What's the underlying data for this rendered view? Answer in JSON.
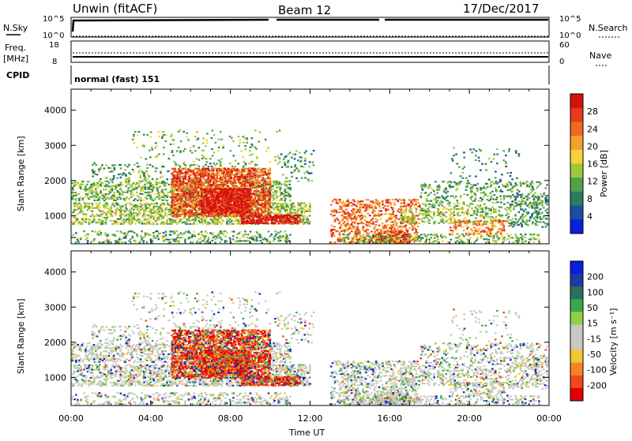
{
  "header": {
    "station": "Unwin (fitACF)",
    "beam": "Beam 12",
    "date": "17/Dec/2017"
  },
  "panels": {
    "nsky": {
      "left_label": "N.Sky",
      "left_ticks": [
        "10^5",
        "10^0"
      ],
      "right_ticks": [
        "10^5",
        "10^0"
      ],
      "right_label": "N.Search"
    },
    "freq": {
      "left_label": "Freq.",
      "left_unit": "[MHz]",
      "left_ticks": [
        "18",
        "8"
      ],
      "right_ticks": [
        "60",
        "0"
      ],
      "right_label": "Nave"
    },
    "cpid": {
      "label": "CPID",
      "value": "normal (fast) 151"
    }
  },
  "colors": {
    "power": [
      "#0a1fd8",
      "#1a4f9e",
      "#2b7d5b",
      "#4fa24a",
      "#9bc93c",
      "#f2d33a",
      "#f2a12b",
      "#ef6a20",
      "#e53a1b",
      "#d60f0f"
    ],
    "velocity": [
      "#e00000",
      "#f0481a",
      "#f5861f",
      "#f2c72f",
      "#c8c8c4",
      "#c8c8c4",
      "#8fd04a",
      "#3aa84a",
      "#2d6f5a",
      "#1f3a9e",
      "#0a1fd8"
    ]
  },
  "chart_data": [
    {
      "type": "heatmap",
      "name": "power",
      "ylabel": "Slant Range [km]",
      "ylim": [
        200,
        4600
      ],
      "yticks": [
        "4000",
        "3000",
        "2000",
        "1000"
      ],
      "xlim": [
        0,
        24
      ],
      "colorbar_label": "Power [dB]",
      "colorbar_ticks": [
        "28",
        "24",
        "20",
        "16",
        "12",
        "8",
        "4"
      ],
      "colorbar_range": [
        0,
        32
      ]
    },
    {
      "type": "heatmap",
      "name": "velocity",
      "ylabel": "Slant Range [km]",
      "ylim": [
        200,
        4600
      ],
      "yticks": [
        "4000",
        "3000",
        "2000",
        "1000"
      ],
      "xlim": [
        0,
        24
      ],
      "xlabel": "Time UT",
      "xticks": [
        "00:00",
        "04:00",
        "08:00",
        "12:00",
        "16:00",
        "20:00",
        "00:00"
      ],
      "colorbar_label": "Velocity [m s⁻¹]",
      "colorbar_ticks": [
        "200",
        "100",
        "50",
        "15",
        "-15",
        "-50",
        "-100",
        "-200"
      ]
    }
  ]
}
